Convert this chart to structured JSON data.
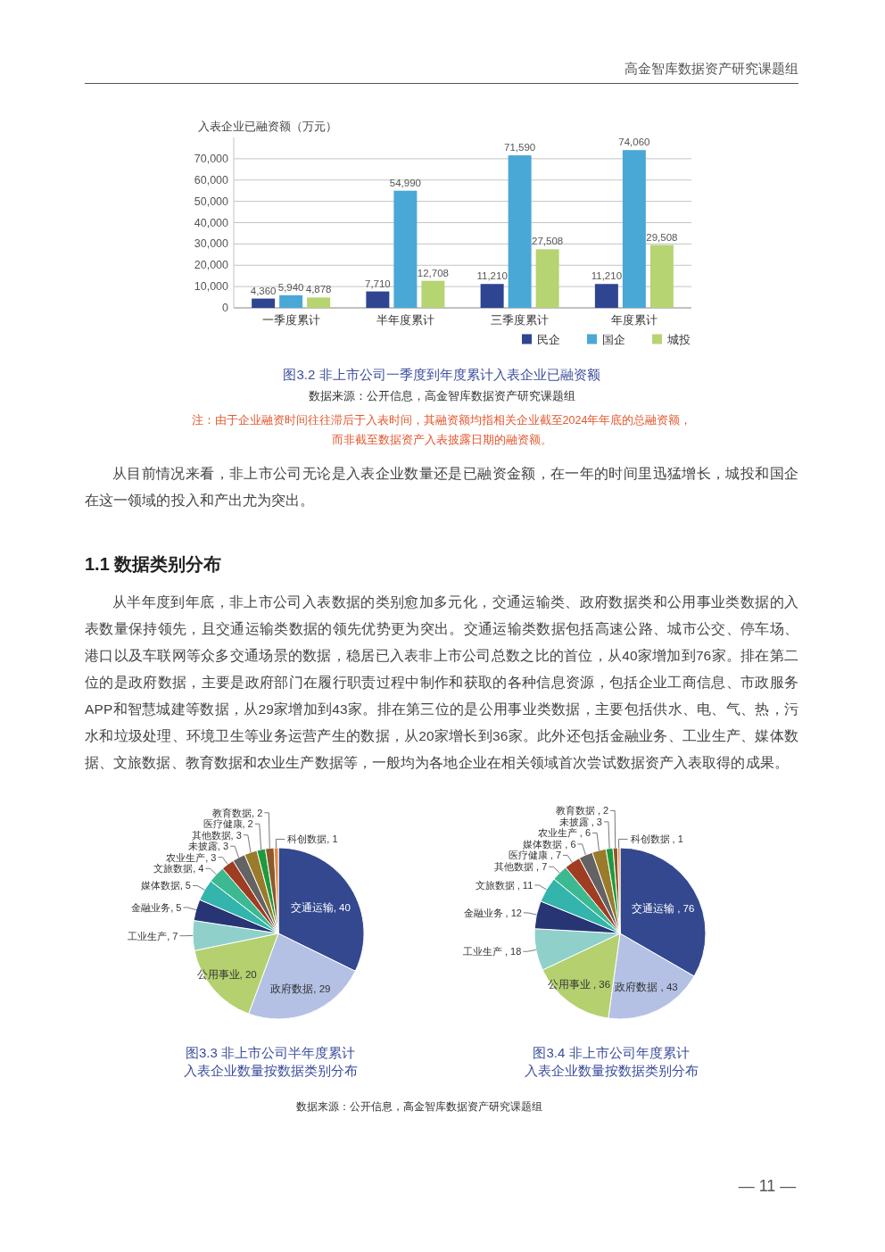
{
  "chart_data": [
    {
      "type": "other",
      "annotations": [
        "高金智库数据资产研究课题组"
      ]
    },
    {
      "type": "bar",
      "title": "图3.2 非上市公司一季度到年度累计入表企业已融资额",
      "ylabel": "入表企业已融资额（万元）",
      "categories": [
        "一季度累计",
        "半年度累计",
        "三季度累计",
        "年度累计"
      ],
      "series": [
        {
          "name": "民企",
          "color": "#2f4592",
          "values": [
            4360,
            7710,
            11210,
            11210
          ],
          "value_labels": [
            "4,360",
            "7,710",
            "11,210",
            "11,210"
          ]
        },
        {
          "name": "国企",
          "color": "#4aa8d6",
          "values": [
            5940,
            54990,
            71590,
            74060
          ],
          "value_labels": [
            "5,940",
            "54,990",
            "71,590",
            "74,060"
          ]
        },
        {
          "name": "城投",
          "color": "#b6d472",
          "values": [
            4878,
            12708,
            27508,
            29508
          ],
          "value_labels": [
            "4,878",
            "12,708",
            "27,508",
            "29,508"
          ]
        }
      ],
      "ylim": [
        0,
        80000
      ],
      "yticks": [
        0,
        {
          "value": 10000,
          "label": "10,000"
        },
        {
          "value": 20000,
          "label": "20,000"
        },
        {
          "value": 30000,
          "label": "30,000"
        },
        {
          "value": 40000,
          "label": "40,000"
        },
        {
          "value": 50000,
          "label": "50,000"
        },
        {
          "value": 60000,
          "label": "60,000"
        },
        {
          "value": 70000,
          "label": "70,000"
        }
      ],
      "grid": "y",
      "legend": "bottom right",
      "annotations": [
        "数据来源：公开信息，高金智库数据资产研究课题组",
        "注：由于企业融资时间往往滞后于入表时间，其融资额均指相关企业截至2024年年底的总融资额，而非截至数据资产入表披露日期的融资额。"
      ]
    },
    {
      "type": "other",
      "annotations": [
        "从目前情况来看，非上市公司无论是入表企业数量还是已融资金额，在一年的时间里迅猛增长，城投和国企在这一领域的投入和产出尤为突出。"
      ]
    },
    {
      "type": "other",
      "title": "1.1 数据类别分布",
      "annotations": [
        "从半年度到年底，非上市公司入表数据的类别愈加多元化，交通运输类、政府数据类和公用事业类数据的入表数量保持领先，且交通运输类数据的领先优势更为突出。交通运输类数据包括高速公路、城市公交、停车场、港口以及车联网等众多交通场景的数据，稳居已入表非上市公司总数之比的首位，从40家增加到76家。排在第二位的是政府数据，主要是政府部门在履行职责过程中制作和获取的各种信息资源，包括企业工商信息、市政服务APP和智慧城建等数据，从29家增加到43家。排在第三位的是公用事业类数据，主要包括供水、电、气、热，污水和垃圾处理、环境卫生等业务运营产生的数据，从20家增长到36家。此外还包括金融业务、工业生产、媒体数据、文旅数据、教育数据和农业生产数据等，一般均为各地企业在相关领域首次尝试数据资产入表取得的成果。"
      ]
    },
    {
      "type": "pie",
      "title": "图3.3 非上市公司半年度累计入表企业数量按数据类别分布",
      "categories": [
        "交通运输",
        "政府数据",
        "公用事业",
        "工业生产",
        "金融业务",
        "媒体数据",
        "文旅数据",
        "农业生产",
        "未披露",
        "其他数据",
        "医疗健康",
        "教育数据",
        "科创数据"
      ],
      "values": [
        40,
        29,
        20,
        7,
        5,
        5,
        4,
        3,
        3,
        3,
        2,
        2,
        1
      ],
      "value_labels": [
        ", 40",
        ", 29",
        ", 20",
        ", 7",
        ", 5",
        ", 5",
        ", 4",
        ", 3",
        ", 3",
        ", 3",
        ", 2",
        ", 2",
        ", 1"
      ],
      "colors": [
        "#34488f",
        "#b4c1e5",
        "#b4d06f",
        "#8fd0cb",
        "#283574",
        "#33b4ac",
        "#3db991",
        "#9f3d22",
        "#636363",
        "#9a7b2b",
        "#1e9a3d",
        "#8c5a2b",
        "#e48a3c"
      ]
    },
    {
      "type": "pie",
      "title": "图3.4 非上市公司年度累计入表企业数量按数据类别分布",
      "categories": [
        "交通运输",
        "政府数据",
        "公用事业",
        "工业生产",
        "金融业务",
        "文旅数据",
        "其他数据",
        "医疗健康",
        "媒体数据",
        "农业生产",
        "未披露",
        "教育数据",
        "科创数据"
      ],
      "values": [
        76,
        43,
        36,
        18,
        12,
        11,
        7,
        7,
        6,
        6,
        3,
        2,
        1
      ],
      "value_labels": [
        " , 76",
        " , 43",
        " , 36",
        " , 18",
        " , 12",
        " , 11",
        " , 7",
        " , 7",
        " , 6",
        " , 6",
        " , 3",
        " , 2",
        " , 1"
      ],
      "colors": [
        "#34488f",
        "#b4c1e5",
        "#b4d06f",
        "#8fd0cb",
        "#283574",
        "#33b4ac",
        "#3db991",
        "#9f3d22",
        "#636363",
        "#9a7b2b",
        "#1e9a3d",
        "#8c5a2b",
        "#e48a3c"
      ]
    },
    {
      "type": "other",
      "annotations": [
        "数据来源：公开信息，高金智库数据资产研究课题组"
      ]
    },
    {
      "type": "other",
      "annotations": [
        "— 11 —"
      ]
    }
  ]
}
